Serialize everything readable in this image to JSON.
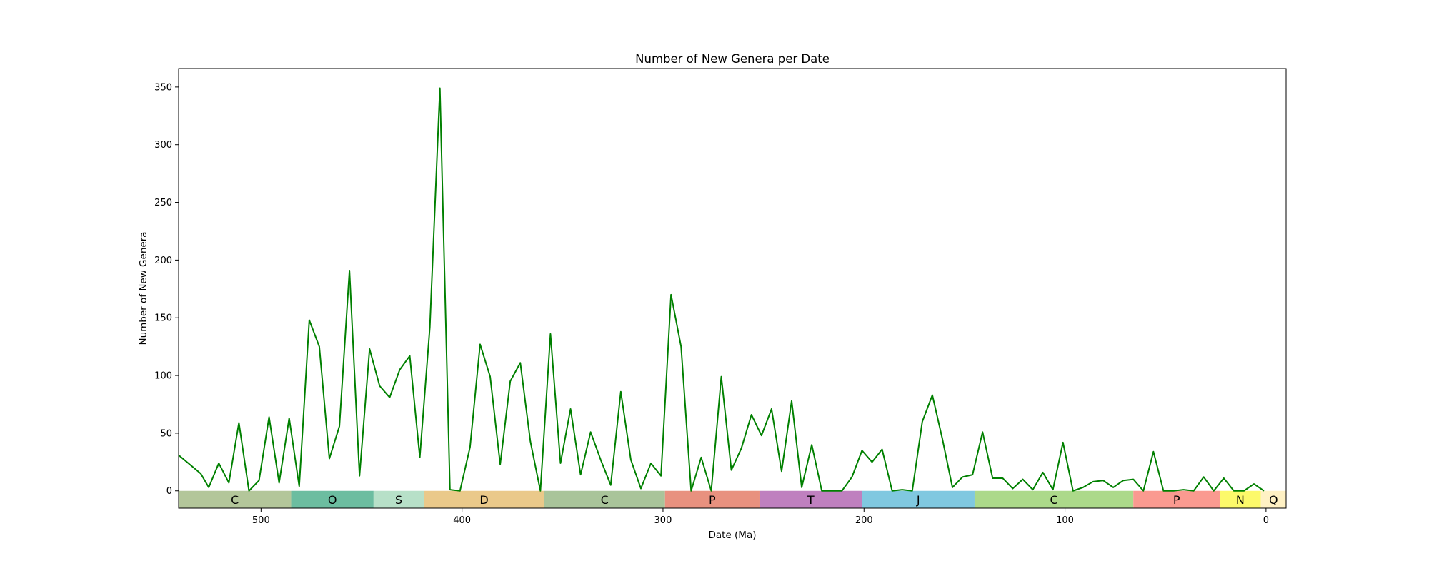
{
  "chart_data": {
    "type": "line",
    "title": "Number of New Genera per Date",
    "xlabel": "Date (Ma)",
    "ylabel": "Number of New Genera",
    "xlim": [
      541,
      -10
    ],
    "ylim": [
      -15,
      366
    ],
    "x_ticks": [
      500,
      400,
      300,
      200,
      100,
      0
    ],
    "x_tick_labels": [
      "500",
      "400",
      "300",
      "200",
      "100",
      "0"
    ],
    "y_ticks": [
      0,
      50,
      100,
      150,
      200,
      250,
      300,
      350
    ],
    "y_tick_labels": [
      "0",
      "50",
      "100",
      "150",
      "200",
      "250",
      "300",
      "350"
    ],
    "grid": false,
    "legend": "none",
    "series": [
      {
        "color": "#008000",
        "points": [
          [
            541,
            31
          ],
          [
            530,
            15
          ],
          [
            526,
            3
          ],
          [
            521,
            24
          ],
          [
            516,
            7
          ],
          [
            511,
            59
          ],
          [
            506,
            0
          ],
          [
            501,
            9
          ],
          [
            496,
            64
          ],
          [
            491,
            7
          ],
          [
            486,
            63
          ],
          [
            481,
            4
          ],
          [
            476,
            148
          ],
          [
            471,
            125
          ],
          [
            466,
            28
          ],
          [
            461,
            56
          ],
          [
            456,
            191
          ],
          [
            451,
            13
          ],
          [
            446,
            123
          ],
          [
            441,
            91
          ],
          [
            436,
            81
          ],
          [
            431,
            105
          ],
          [
            426,
            117
          ],
          [
            421,
            29
          ],
          [
            416,
            142
          ],
          [
            411,
            349
          ],
          [
            406,
            1
          ],
          [
            401,
            0
          ],
          [
            396,
            38
          ],
          [
            391,
            127
          ],
          [
            386,
            99
          ],
          [
            381,
            23
          ],
          [
            376,
            95
          ],
          [
            371,
            111
          ],
          [
            366,
            43
          ],
          [
            361,
            0
          ],
          [
            356,
            136
          ],
          [
            351,
            24
          ],
          [
            346,
            71
          ],
          [
            341,
            14
          ],
          [
            336,
            51
          ],
          [
            331,
            27
          ],
          [
            326,
            5
          ],
          [
            321,
            86
          ],
          [
            316,
            27
          ],
          [
            311,
            2
          ],
          [
            306,
            24
          ],
          [
            301,
            13
          ],
          [
            296,
            170
          ],
          [
            291,
            125
          ],
          [
            286,
            0
          ],
          [
            281,
            29
          ],
          [
            276,
            0
          ],
          [
            271,
            99
          ],
          [
            266,
            18
          ],
          [
            261,
            37
          ],
          [
            256,
            66
          ],
          [
            251,
            48
          ],
          [
            246,
            71
          ],
          [
            241,
            17
          ],
          [
            236,
            78
          ],
          [
            231,
            3
          ],
          [
            226,
            40
          ],
          [
            221,
            0
          ],
          [
            216,
            0
          ],
          [
            211,
            0
          ],
          [
            206,
            12
          ],
          [
            201,
            35
          ],
          [
            196,
            25
          ],
          [
            191,
            36
          ],
          [
            186,
            0
          ],
          [
            181,
            1
          ],
          [
            176,
            0
          ],
          [
            171,
            60
          ],
          [
            166,
            83
          ],
          [
            161,
            45
          ],
          [
            156,
            3
          ],
          [
            151,
            12
          ],
          [
            146,
            14
          ],
          [
            141,
            51
          ],
          [
            136,
            11
          ],
          [
            131,
            11
          ],
          [
            126,
            2
          ],
          [
            121,
            10
          ],
          [
            116,
            1
          ],
          [
            111,
            16
          ],
          [
            106,
            1
          ],
          [
            101,
            42
          ],
          [
            96,
            0
          ],
          [
            91,
            3
          ],
          [
            86,
            8
          ],
          [
            81,
            9
          ],
          [
            76,
            3
          ],
          [
            71,
            9
          ],
          [
            66,
            10
          ],
          [
            61,
            0
          ],
          [
            56,
            34
          ],
          [
            51,
            0
          ],
          [
            46,
            0
          ],
          [
            41,
            1
          ],
          [
            36,
            0
          ],
          [
            31,
            12
          ],
          [
            26,
            0
          ],
          [
            21,
            11
          ],
          [
            16,
            0
          ],
          [
            11,
            0
          ],
          [
            6,
            6
          ],
          [
            1,
            0
          ]
        ]
      }
    ],
    "periods": [
      {
        "label": "C",
        "start": 541,
        "end": 485,
        "color": "#b3c69a"
      },
      {
        "label": "O",
        "start": 485,
        "end": 444,
        "color": "#6cbda0"
      },
      {
        "label": "S",
        "start": 444,
        "end": 419,
        "color": "#b7e0c8"
      },
      {
        "label": "D",
        "start": 419,
        "end": 359,
        "color": "#eac98a"
      },
      {
        "label": "C",
        "start": 359,
        "end": 299,
        "color": "#a9c49a"
      },
      {
        "label": "P",
        "start": 299,
        "end": 252,
        "color": "#e8917f"
      },
      {
        "label": "T",
        "start": 252,
        "end": 201,
        "color": "#bf80bf"
      },
      {
        "label": "J",
        "start": 201,
        "end": 145,
        "color": "#80c8e0"
      },
      {
        "label": "C",
        "start": 145,
        "end": 66,
        "color": "#acd98a"
      },
      {
        "label": "P",
        "start": 66,
        "end": 23,
        "color": "#fa9a90"
      },
      {
        "label": "N",
        "start": 23,
        "end": 2.6,
        "color": "#fcf96a"
      },
      {
        "label": "Q",
        "start": 2.6,
        "end": -10,
        "color": "#fff1c4"
      }
    ]
  }
}
